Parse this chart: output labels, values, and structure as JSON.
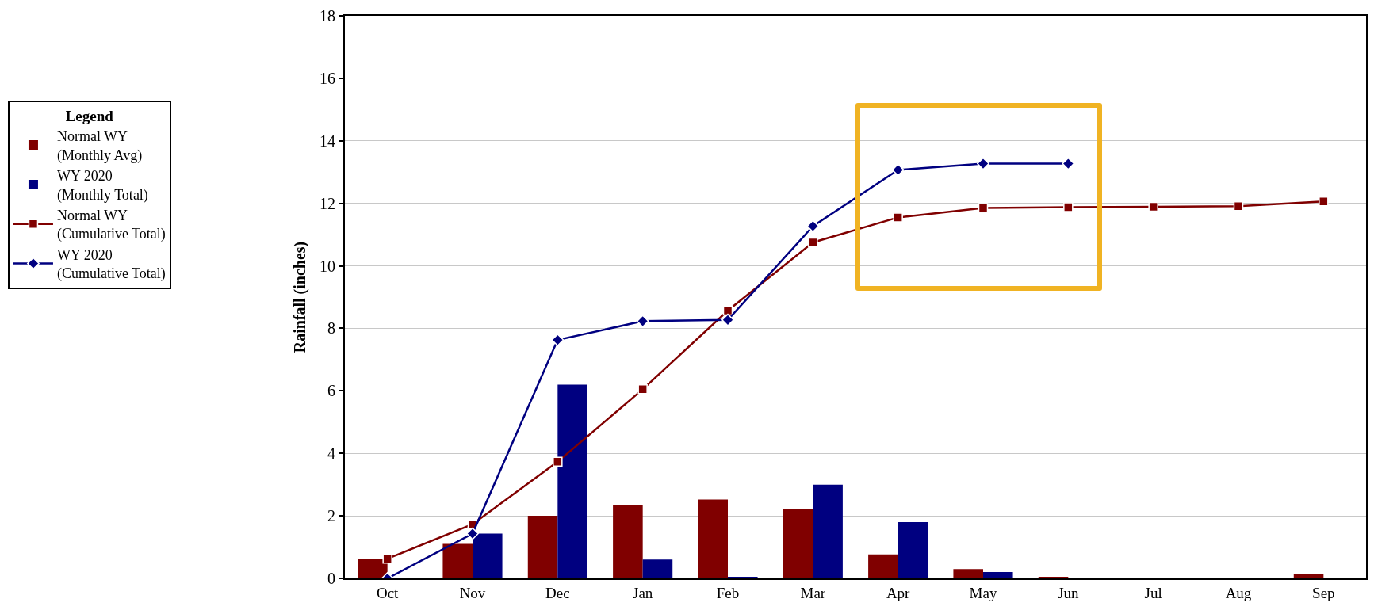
{
  "chart_data": {
    "type": "bar",
    "ylabel": "Rainfall (inches)",
    "legend_title": "Legend",
    "categories": [
      "Oct",
      "Nov",
      "Dec",
      "Jan",
      "Feb",
      "Mar",
      "Apr",
      "May",
      "Jun",
      "Jul",
      "Aug",
      "Sep"
    ],
    "series": [
      {
        "name": "Normal WY (Monthly Avg)",
        "color": "#800000",
        "values": [
          0.63,
          1.1,
          2.0,
          2.33,
          2.52,
          2.21,
          0.77,
          0.3,
          0.03,
          0.01,
          0.02,
          0.15
        ]
      },
      {
        "name": "WY 2020 (Monthly Total)",
        "color": "#000080",
        "values": [
          0,
          1.43,
          6.2,
          0.6,
          0.03,
          3.0,
          1.8,
          0.2,
          0,
          null,
          null,
          null
        ]
      },
      {
        "name": "Normal WY (Cumulative Total)",
        "type": "line",
        "color": "#800000",
        "marker": "square",
        "values": [
          0.63,
          1.73,
          3.73,
          6.05,
          8.57,
          10.75,
          11.55,
          11.85,
          11.88,
          11.89,
          11.91,
          12.06
        ]
      },
      {
        "name": "WY 2020 (Cumulative Total)",
        "type": "line",
        "color": "#000080",
        "marker": "diamond",
        "values": [
          0.0,
          1.43,
          7.63,
          8.23,
          8.27,
          11.27,
          13.07,
          13.27,
          13.27,
          null,
          null,
          null
        ]
      }
    ],
    "ylim": [
      0,
      18
    ],
    "yticks": [
      0,
      2,
      4,
      6,
      8,
      10,
      12,
      14,
      16,
      18
    ],
    "grid": "y",
    "legend": "left",
    "line_style": "solid"
  }
}
